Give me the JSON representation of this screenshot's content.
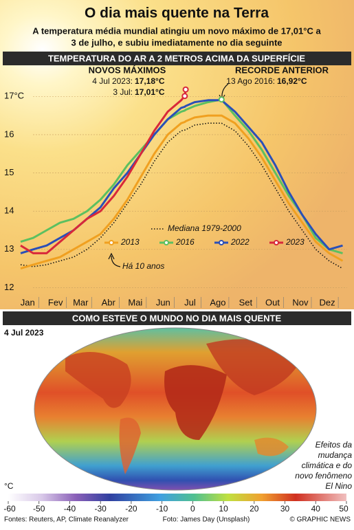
{
  "chart_data": {
    "type": "line",
    "title": "O dia mais quente na Terra",
    "subtitle": [
      "A temperatura média mundial atingiu um novo máximo de 17,01°C a",
      "3 de julho, e subiu imediatamente no dia seguinte"
    ],
    "section_title": "TEMPERATURA DO AR A 2 METROS ACIMA DA SUPERFÍCIE",
    "annotations": {
      "new_high_title": "NOVOS MÁXIMOS",
      "new_high_1": "4 Jul 2023:",
      "new_high_1_value": "17,18°C",
      "new_high_2": "3 Jul:",
      "new_high_2_value": "17,01°C",
      "previous_title": "RECORDE ANTERIOR",
      "previous": "13 Ago 2016:",
      "previous_value": "16,92°C",
      "ten_years": "Há 10 anos"
    },
    "x": [
      1,
      15,
      30,
      45,
      60,
      75,
      90,
      105,
      120,
      135,
      150,
      165,
      180,
      184,
      185,
      195,
      210,
      225,
      240,
      255,
      270,
      285,
      300,
      315,
      330,
      345,
      360
    ],
    "xlim": [
      1,
      365
    ],
    "xticks": [
      {
        "value": 15,
        "label": "Jan"
      },
      {
        "value": 46,
        "label": "Fev"
      },
      {
        "value": 74,
        "label": "Mar"
      },
      {
        "value": 105,
        "label": "Abr"
      },
      {
        "value": 135,
        "label": "Mai"
      },
      {
        "value": 166,
        "label": "Jun"
      },
      {
        "value": 196,
        "label": "Jul"
      },
      {
        "value": 227,
        "label": "Ago"
      },
      {
        "value": 258,
        "label": "Set"
      },
      {
        "value": 288,
        "label": "Out"
      },
      {
        "value": 319,
        "label": "Nov"
      },
      {
        "value": 349,
        "label": "Dez"
      }
    ],
    "ylim": [
      11.9,
      17.4
    ],
    "yticks": [
      12,
      13,
      14,
      15,
      16,
      {
        "value": 17,
        "label": "17°C"
      }
    ],
    "grid": true,
    "series": [
      {
        "name": "Mediana 1979-2000",
        "color": "#111111",
        "dash": true,
        "values": [
          12.6,
          12.55,
          12.6,
          12.7,
          12.8,
          13.0,
          13.3,
          13.7,
          14.2,
          14.7,
          15.3,
          15.8,
          16.1,
          16.12,
          16.13,
          16.25,
          16.3,
          16.3,
          16.1,
          15.7,
          15.2,
          14.6,
          14.0,
          13.5,
          13.0,
          12.7,
          12.5
        ]
      },
      {
        "name": "2013",
        "color": "#f0a020",
        "values": [
          12.5,
          12.6,
          12.7,
          12.8,
          13.0,
          13.2,
          13.4,
          13.8,
          14.3,
          14.9,
          15.5,
          16.0,
          16.3,
          16.33,
          16.35,
          16.45,
          16.5,
          16.5,
          16.3,
          15.9,
          15.4,
          14.8,
          14.2,
          13.7,
          13.2,
          12.9,
          12.7
        ]
      },
      {
        "name": "2016",
        "color": "#5cc060",
        "values": [
          13.2,
          13.3,
          13.5,
          13.7,
          13.8,
          14.0,
          14.3,
          14.7,
          15.2,
          15.6,
          16.0,
          16.4,
          16.6,
          16.63,
          16.65,
          16.75,
          16.85,
          16.92,
          16.5,
          16.1,
          15.6,
          15.0,
          14.4,
          13.9,
          13.3,
          13.0,
          12.9
        ]
      },
      {
        "name": "2022",
        "color": "#2a4fb8",
        "values": [
          12.9,
          13.0,
          13.1,
          13.3,
          13.5,
          13.8,
          14.1,
          14.6,
          15.0,
          15.5,
          16.0,
          16.4,
          16.7,
          16.73,
          16.75,
          16.85,
          16.9,
          16.9,
          16.6,
          16.2,
          15.8,
          15.2,
          14.5,
          13.9,
          13.4,
          13.0,
          13.1
        ]
      },
      {
        "name": "2023",
        "color": "#d8283a",
        "values": [
          13.1,
          12.9,
          12.9,
          13.2,
          13.5,
          13.8,
          14.0,
          14.4,
          14.9,
          15.5,
          16.1,
          16.6,
          16.9,
          17.01,
          17.18,
          null,
          null,
          null,
          null,
          null,
          null,
          null,
          null,
          null,
          null,
          null,
          null
        ]
      }
    ]
  },
  "map": {
    "title": "COMO ESTEVE O MUNDO NO DIA MAIS QUENTE",
    "date": "4 Jul 2023",
    "note": [
      "Efeitos da",
      "mudança",
      "climática e do",
      "novo fenômeno",
      "El Nino"
    ],
    "colorbar": {
      "label": "°C",
      "ticks": [
        -60,
        -50,
        -40,
        -30,
        -20,
        -10,
        0,
        10,
        20,
        30,
        40,
        50
      ]
    }
  },
  "footer": {
    "sources": "Fontes: Reuters, AP, Climate Reanalyzer",
    "photo": "Foto: James Day (Unsplash)",
    "copyright": "© GRAPHIC NEWS"
  }
}
